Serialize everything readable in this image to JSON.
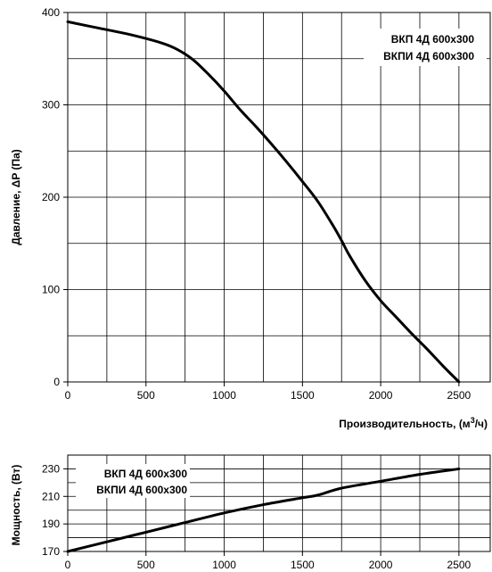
{
  "chart_data": [
    {
      "type": "line",
      "xlabel": "Производительность, (м³/ч)",
      "xlabel_main": "Производительность, (м",
      "xlabel_sup": "3",
      "xlabel_tail": "/ч)",
      "ylabel": "Давление, ΔP (Па)",
      "xlim": [
        0,
        2700
      ],
      "ylim": [
        0,
        400
      ],
      "x_ticks": [
        0,
        500,
        1000,
        1500,
        2000,
        2500
      ],
      "y_ticks": [
        0,
        100,
        200,
        300,
        400
      ],
      "grid": true,
      "legend_position": "top-right",
      "legend": [
        "ВКП 4Д 600x300",
        "ВКПИ 4Д 600x300"
      ],
      "series": [
        {
          "x": [
            0,
            200,
            400,
            600,
            700,
            800,
            900,
            1000,
            1100,
            1200,
            1300,
            1400,
            1500,
            1600,
            1700,
            1750,
            1800,
            1900,
            2000,
            2100,
            2200,
            2300,
            2400,
            2500
          ],
          "y": [
            390,
            383,
            376,
            367,
            360,
            349,
            333,
            315,
            295,
            277,
            258,
            238,
            217,
            195,
            168,
            153,
            137,
            110,
            88,
            70,
            52,
            35,
            17,
            0
          ]
        }
      ]
    },
    {
      "type": "line",
      "ylabel": "Мощность, (Вт)",
      "xlim": [
        0,
        2700
      ],
      "ylim": [
        170,
        240
      ],
      "x_ticks": [
        0,
        500,
        1000,
        1500,
        2000,
        2500
      ],
      "y_ticks": [
        170,
        190,
        210,
        230
      ],
      "grid": true,
      "legend_position": "top-left",
      "legend": [
        "ВКП 4Д 600x300",
        "ВКПИ 4Д 600x300"
      ],
      "series": [
        {
          "x": [
            0,
            250,
            500,
            750,
            1000,
            1250,
            1500,
            1600,
            1750,
            2000,
            2250,
            2500
          ],
          "y": [
            170,
            177,
            184,
            191,
            198,
            204,
            209,
            211,
            216,
            221,
            226,
            230
          ]
        }
      ]
    }
  ]
}
